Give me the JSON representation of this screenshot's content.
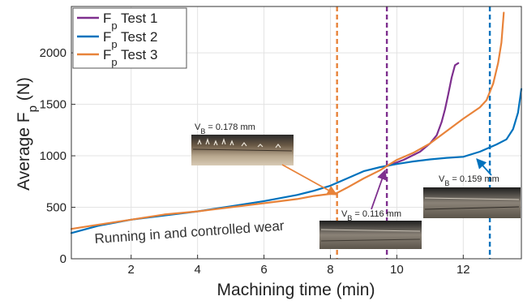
{
  "chart_data": {
    "type": "line",
    "xlabel": "Machining time (min)",
    "ylabel": "Average F_p (N)",
    "xlim": [
      0.2,
      13.75
    ],
    "ylim": [
      0,
      2450
    ],
    "xticks": [
      2,
      4,
      6,
      8,
      10,
      12
    ],
    "yticks": [
      0,
      500,
      1000,
      1500,
      2000
    ],
    "grid": true,
    "legend_position": "top-left",
    "series": [
      {
        "name": "Fp Test 1",
        "color": "#7E2F8E",
        "x": [
          9.7,
          10.2,
          10.7,
          11.0,
          11.2,
          11.35,
          11.45,
          11.55,
          11.65,
          11.75,
          11.85
        ],
        "y": [
          900,
          960,
          1040,
          1120,
          1200,
          1330,
          1450,
          1600,
          1760,
          1880,
          1900
        ]
      },
      {
        "name": "Fp Test 2",
        "color": "#0072BD",
        "x": [
          0.2,
          1.0,
          2.0,
          3.0,
          4.0,
          5.0,
          6.0,
          7.0,
          7.5,
          8.0,
          8.5,
          9.0,
          9.5,
          10.0,
          10.5,
          11.0,
          11.5,
          12.0,
          12.5,
          13.0,
          13.3,
          13.5,
          13.65,
          13.75
        ],
        "y": [
          250,
          320,
          380,
          420,
          460,
          510,
          560,
          620,
          660,
          710,
          780,
          850,
          890,
          920,
          945,
          965,
          980,
          990,
          1040,
          1110,
          1160,
          1260,
          1420,
          1650
        ]
      },
      {
        "name": "Fp Test 3",
        "color": "#E8833A",
        "x": [
          0.2,
          1.0,
          2.0,
          3.0,
          4.0,
          5.0,
          6.0,
          7.0,
          7.5,
          8.0,
          8.2,
          8.5,
          9.0,
          9.5,
          10.0,
          10.5,
          11.0,
          11.5,
          12.0,
          12.5,
          12.7,
          12.9,
          13.05,
          13.15,
          13.22
        ],
        "y": [
          290,
          330,
          380,
          430,
          460,
          500,
          540,
          580,
          610,
          630,
          640,
          690,
          780,
          860,
          960,
          1030,
          1120,
          1240,
          1360,
          1470,
          1540,
          1700,
          1900,
          2100,
          2390
        ]
      }
    ],
    "vlines": [
      {
        "x": 8.2,
        "color": "#E8833A"
      },
      {
        "x": 9.7,
        "color": "#7E2F8E"
      },
      {
        "x": 12.8,
        "color": "#0072BD"
      }
    ],
    "annotations": [
      "V_B = 0.178 mm",
      "V_B = 0.116 mm",
      "V_B = 0.159 mm",
      "Running in and controlled wear"
    ]
  }
}
